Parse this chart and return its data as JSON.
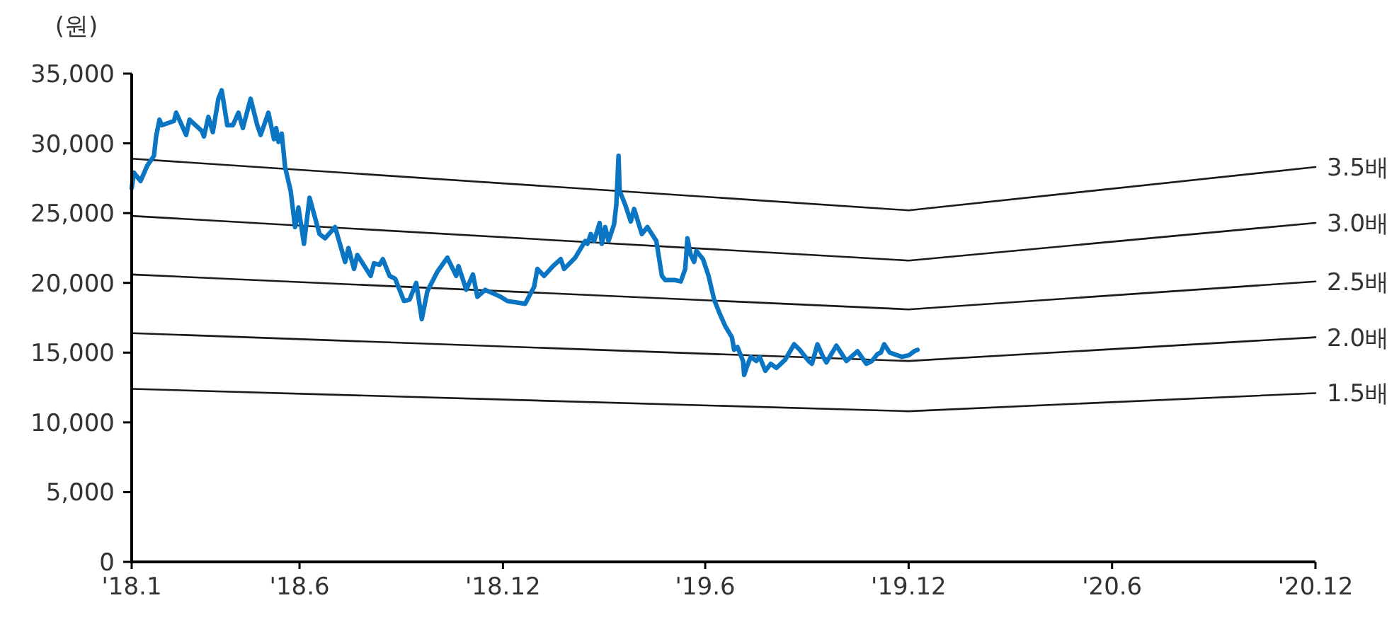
{
  "chart_data": {
    "type": "line",
    "ylabel": "(원)",
    "xlim": [
      "2018-01-01",
      "2020-12-01"
    ],
    "ylim": [
      0,
      35000
    ],
    "xticks": [
      {
        "value": "2018-01-01",
        "label": "'18.1"
      },
      {
        "value": "2018-06-01",
        "label": "'18.6"
      },
      {
        "value": "2018-12-01",
        "label": "'18.12"
      },
      {
        "value": "2019-06-01",
        "label": "'19.6"
      },
      {
        "value": "2019-12-01",
        "label": "'19.12"
      },
      {
        "value": "2020-06-01",
        "label": "'20.6"
      },
      {
        "value": "2020-12-01",
        "label": "'20.12"
      }
    ],
    "yticks": [
      {
        "value": 0,
        "label": "0"
      },
      {
        "value": 5000,
        "label": "5,000"
      },
      {
        "value": 10000,
        "label": "10,000"
      },
      {
        "value": 15000,
        "label": "15,000"
      },
      {
        "value": 20000,
        "label": "20,000"
      },
      {
        "value": 25000,
        "label": "25,000"
      },
      {
        "value": 30000,
        "label": "30,000"
      },
      {
        "value": 35000,
        "label": "35,000"
      }
    ],
    "legend": false,
    "marker": "none",
    "line_style": "solid",
    "series": [
      {
        "color": "#0a75c2",
        "x": [
          "2018-01-01",
          "2018-01-03",
          "2018-01-09",
          "2018-01-15",
          "2018-01-21",
          "2018-01-23",
          "2018-01-26",
          "2018-01-28",
          "2018-02-08",
          "2018-02-10",
          "2018-02-19",
          "2018-02-22",
          "2018-03-05",
          "2018-03-07",
          "2018-03-11",
          "2018-03-15",
          "2018-03-20",
          "2018-03-23",
          "2018-03-28",
          "2018-04-02",
          "2018-04-07",
          "2018-04-11",
          "2018-04-18",
          "2018-04-24",
          "2018-04-27",
          "2018-05-04",
          "2018-05-09",
          "2018-05-11",
          "2018-05-13",
          "2018-05-16",
          "2018-05-19",
          "2018-05-24",
          "2018-05-28",
          "2018-05-31",
          "2018-06-05",
          "2018-06-10",
          "2018-06-19",
          "2018-06-24",
          "2018-07-03",
          "2018-07-12",
          "2018-07-15",
          "2018-07-20",
          "2018-07-23",
          "2018-08-04",
          "2018-08-07",
          "2018-08-12",
          "2018-08-15",
          "2018-08-21",
          "2018-08-26",
          "2018-09-03",
          "2018-09-08",
          "2018-09-14",
          "2018-09-19",
          "2018-09-24",
          "2018-10-03",
          "2018-10-12",
          "2018-10-20",
          "2018-10-22",
          "2018-10-29",
          "2018-11-04",
          "2018-11-08",
          "2018-11-15",
          "2018-11-29",
          "2018-12-05",
          "2018-12-21",
          "2018-12-29",
          "2019-01-01",
          "2019-01-07",
          "2019-01-15",
          "2019-01-22",
          "2019-01-25",
          "2019-02-04",
          "2019-02-13",
          "2019-02-15",
          "2019-02-18",
          "2019-02-21",
          "2019-02-26",
          "2019-02-28",
          "2019-03-03",
          "2019-03-06",
          "2019-03-11",
          "2019-03-13",
          "2019-03-15",
          "2019-03-16",
          "2019-03-21",
          "2019-03-26",
          "2019-03-29",
          "2019-04-05",
          "2019-04-10",
          "2019-04-18",
          "2019-04-23",
          "2019-04-26",
          "2019-05-05",
          "2019-05-10",
          "2019-05-14",
          "2019-05-16",
          "2019-05-19",
          "2019-05-22",
          "2019-05-24",
          "2019-05-30",
          "2019-06-04",
          "2019-06-09",
          "2019-06-14",
          "2019-06-19",
          "2019-06-25",
          "2019-06-27",
          "2019-06-30",
          "2019-07-05",
          "2019-07-06",
          "2019-07-09",
          "2019-07-12",
          "2019-07-17",
          "2019-07-20",
          "2019-07-25",
          "2019-07-30",
          "2019-08-04",
          "2019-08-12",
          "2019-08-20",
          "2019-08-25",
          "2019-09-02",
          "2019-09-05",
          "2019-09-10",
          "2019-09-15",
          "2019-09-18",
          "2019-09-27",
          "2019-10-06",
          "2019-10-16",
          "2019-10-24",
          "2019-10-29",
          "2019-11-03",
          "2019-11-06",
          "2019-11-09",
          "2019-11-14",
          "2019-11-25",
          "2019-12-01",
          "2019-12-06",
          "2019-12-09"
        ],
        "values": [
          26800,
          27900,
          27300,
          28400,
          29100,
          30500,
          31700,
          31300,
          31600,
          32200,
          30600,
          31700,
          30900,
          30500,
          31900,
          30800,
          33200,
          33800,
          31300,
          31300,
          32200,
          31100,
          33200,
          31300,
          30600,
          32200,
          30300,
          31100,
          30100,
          30700,
          28300,
          26600,
          24000,
          25400,
          22800,
          26100,
          23500,
          23200,
          24000,
          21500,
          22500,
          21000,
          22000,
          20500,
          21400,
          21300,
          21700,
          20500,
          20300,
          18700,
          18800,
          20000,
          17400,
          19400,
          20800,
          21800,
          20500,
          21200,
          19500,
          20600,
          19000,
          19500,
          19000,
          18700,
          18500,
          19700,
          21000,
          20500,
          21200,
          21700,
          21000,
          21800,
          23000,
          22800,
          23500,
          23000,
          24300,
          22800,
          24000,
          23000,
          24200,
          25600,
          29100,
          26600,
          25600,
          24400,
          25300,
          23500,
          24000,
          23000,
          20500,
          20200,
          20200,
          20100,
          21000,
          23200,
          22000,
          21500,
          22300,
          21700,
          20500,
          18800,
          17800,
          16900,
          16100,
          15200,
          15400,
          14400,
          13400,
          14100,
          14700,
          14400,
          14700,
          13700,
          14200,
          13900,
          14500,
          15600,
          15200,
          14400,
          14200,
          15600,
          14700,
          14300,
          15500,
          14400,
          15100,
          14200,
          14400,
          14900,
          15000,
          15600,
          15000,
          14700,
          14800,
          15100,
          15200
        ]
      },
      {
        "name": "3.5배",
        "color": "#1a1a1a",
        "x": [
          "2018-01-01",
          "2019-12-01",
          "2020-12-01"
        ],
        "values": [
          28900,
          25200,
          28300
        ]
      },
      {
        "name": "3.0배",
        "color": "#1a1a1a",
        "x": [
          "2018-01-01",
          "2019-12-01",
          "2020-12-01"
        ],
        "values": [
          24800,
          21600,
          24300
        ]
      },
      {
        "name": "2.5배",
        "color": "#1a1a1a",
        "x": [
          "2018-01-01",
          "2019-12-01",
          "2020-12-01"
        ],
        "values": [
          20600,
          18100,
          20100
        ]
      },
      {
        "name": "2.0배",
        "color": "#1a1a1a",
        "x": [
          "2018-01-01",
          "2019-12-01",
          "2020-12-01"
        ],
        "values": [
          16400,
          14400,
          16100
        ]
      },
      {
        "name": "1.5배",
        "color": "#1a1a1a",
        "x": [
          "2018-01-01",
          "2019-12-01",
          "2020-12-01"
        ],
        "values": [
          12400,
          10800,
          12100
        ]
      }
    ]
  }
}
